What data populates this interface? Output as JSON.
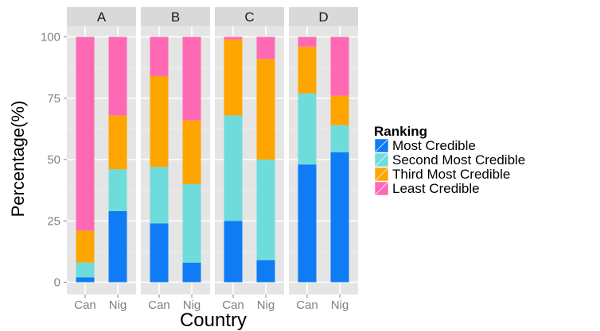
{
  "chart_data": {
    "type": "bar",
    "stacked": true,
    "facets": [
      "A",
      "B",
      "C",
      "D"
    ],
    "categories": [
      "Can",
      "Nig"
    ],
    "xlabel": "Country",
    "ylabel": "Percentage(%)",
    "ylim": [
      0,
      100
    ],
    "yticks": [
      0,
      25,
      50,
      75,
      100
    ],
    "grid": true,
    "legend": {
      "title": "Ranking",
      "placement": "right"
    },
    "series": [
      {
        "name": "Most Credible",
        "color": "#0f7bf5",
        "values": {
          "A": [
            2,
            29
          ],
          "B": [
            24,
            8
          ],
          "C": [
            25,
            9
          ],
          "D": [
            48,
            53
          ]
        }
      },
      {
        "name": "Second Most Credible",
        "color": "#6fdcdc",
        "values": {
          "A": [
            6,
            17
          ],
          "B": [
            23,
            32
          ],
          "C": [
            43,
            41
          ],
          "D": [
            29,
            11
          ]
        }
      },
      {
        "name": "Third Most Credible",
        "color": "#ffa500",
        "values": {
          "A": [
            13,
            22
          ],
          "B": [
            37,
            26
          ],
          "C": [
            31,
            41
          ],
          "D": [
            19,
            12
          ]
        }
      },
      {
        "name": "Least Credible",
        "color": "#ff69b4",
        "values": {
          "A": [
            79,
            32
          ],
          "B": [
            16,
            34
          ],
          "C": [
            1,
            9
          ],
          "D": [
            4,
            24
          ]
        }
      }
    ]
  }
}
